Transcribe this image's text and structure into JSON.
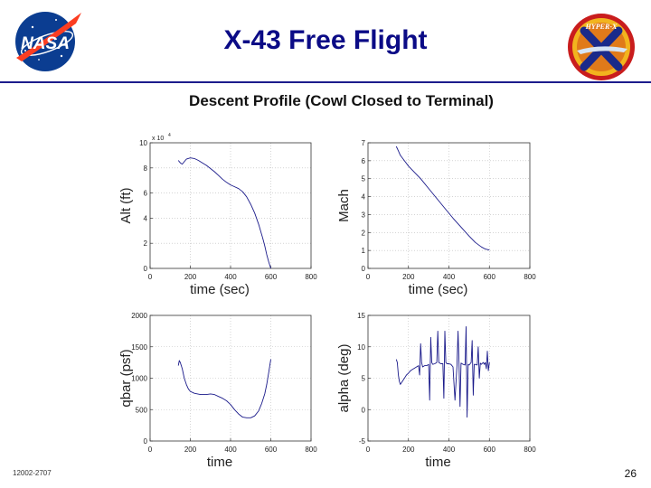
{
  "slide": {
    "title": "X-43 Free Flight",
    "footer_id": "12002-2707",
    "page_number": "26",
    "nasa_logo_text": "NASA",
    "hyperx_logo_text": "HYPER-X"
  },
  "figure_title": "Descent Profile (Cowl Closed to Terminal)",
  "colors": {
    "title": "#0b0b86",
    "line": "#1a1a8a",
    "nasa_blue": "#0b3d91",
    "nasa_red": "#fc3d21"
  },
  "chart_data": [
    {
      "id": "alt",
      "type": "line",
      "xlabel": "time (sec)",
      "ylabel": "Alt (ft)",
      "xlim": [
        0,
        800
      ],
      "ylim": [
        0,
        10
      ],
      "xticks": [
        0,
        200,
        400,
        600,
        800
      ],
      "yticks": [
        0,
        2,
        4,
        6,
        8,
        10
      ],
      "yscale_label": "x 10",
      "yscale_exp": "4",
      "grid": true,
      "series": [
        {
          "x": [
            140,
            150,
            160,
            170,
            180,
            200,
            220,
            240,
            260,
            280,
            300,
            320,
            340,
            360,
            380,
            400,
            420,
            440,
            460,
            480,
            500,
            520,
            540,
            560,
            570,
            580,
            590,
            600
          ],
          "values": [
            8.6,
            8.4,
            8.3,
            8.5,
            8.7,
            8.8,
            8.75,
            8.6,
            8.4,
            8.2,
            7.95,
            7.7,
            7.4,
            7.1,
            6.85,
            6.65,
            6.5,
            6.35,
            6.1,
            5.7,
            5.1,
            4.4,
            3.5,
            2.4,
            1.8,
            1.1,
            0.5,
            0.0
          ]
        }
      ]
    },
    {
      "id": "mach",
      "type": "line",
      "xlabel": "time (sec)",
      "ylabel": "Mach",
      "xlim": [
        0,
        800
      ],
      "ylim": [
        0,
        7
      ],
      "xticks": [
        0,
        200,
        400,
        600,
        800
      ],
      "yticks": [
        0,
        1,
        2,
        3,
        4,
        5,
        6,
        7
      ],
      "grid": true,
      "series": [
        {
          "x": [
            140,
            150,
            160,
            180,
            200,
            230,
            260,
            300,
            340,
            380,
            420,
            460,
            500,
            530,
            560,
            580,
            600
          ],
          "values": [
            6.8,
            6.55,
            6.3,
            6.0,
            5.7,
            5.35,
            5.0,
            4.45,
            3.9,
            3.35,
            2.8,
            2.3,
            1.8,
            1.45,
            1.2,
            1.08,
            1.02
          ]
        }
      ]
    },
    {
      "id": "qbar",
      "type": "line",
      "xlabel": "time",
      "ylabel": "qbar (psf)",
      "xlim": [
        0,
        800
      ],
      "ylim": [
        0,
        2000
      ],
      "xticks": [
        0,
        200,
        400,
        600,
        800
      ],
      "yticks": [
        0,
        500,
        1000,
        1500,
        2000
      ],
      "grid": true,
      "series": [
        {
          "x": [
            140,
            145,
            150,
            160,
            170,
            180,
            190,
            200,
            220,
            250,
            280,
            300,
            320,
            340,
            360,
            380,
            400,
            420,
            440,
            460,
            480,
            500,
            520,
            540,
            555,
            570,
            580,
            590,
            600
          ],
          "values": [
            1200,
            1280,
            1250,
            1150,
            1000,
            900,
            830,
            790,
            760,
            740,
            740,
            750,
            740,
            710,
            680,
            640,
            580,
            500,
            430,
            380,
            370,
            370,
            400,
            480,
            600,
            750,
            900,
            1100,
            1300
          ]
        }
      ]
    },
    {
      "id": "alpha",
      "type": "line",
      "xlabel": "time",
      "ylabel": "alpha (deg)",
      "xlim": [
        0,
        800
      ],
      "ylim": [
        -5,
        15
      ],
      "xticks": [
        0,
        200,
        400,
        600,
        800
      ],
      "yticks": [
        -5,
        0,
        5,
        10,
        15
      ],
      "grid": true,
      "series": [
        {
          "x": [
            140,
            145,
            150,
            155,
            160,
            170,
            180,
            190,
            200,
            210,
            220,
            230,
            240,
            250,
            255,
            260,
            265,
            270,
            280,
            290,
            300,
            305,
            310,
            315,
            320,
            330,
            340,
            345,
            350,
            360,
            370,
            375,
            380,
            385,
            390,
            400,
            410,
            420,
            430,
            440,
            445,
            450,
            455,
            460,
            470,
            480,
            485,
            490,
            495,
            500,
            510,
            515,
            520,
            525,
            530,
            540,
            545,
            550,
            555,
            560,
            570,
            575,
            580,
            585,
            590,
            595,
            600
          ],
          "values": [
            8,
            7.5,
            5.5,
            4.5,
            4,
            4.5,
            5,
            5.5,
            5.8,
            6.2,
            6.4,
            6.6,
            6.8,
            7,
            5.5,
            10.5,
            7.5,
            6.8,
            7,
            7,
            7.2,
            1.5,
            11.5,
            7.5,
            7.2,
            7.3,
            7.5,
            12.5,
            7.5,
            7.3,
            7.3,
            1.8,
            12.5,
            7.5,
            7.3,
            7.3,
            7.2,
            6.8,
            1.5,
            7,
            12.5,
            7.2,
            0.5,
            7.4,
            7.2,
            7.1,
            13.2,
            -1.2,
            7.2,
            7.1,
            7.5,
            11,
            2.3,
            7.2,
            7.2,
            7.1,
            10,
            5,
            7.4,
            7.2,
            7.5,
            7.2,
            7.5,
            6.5,
            9.3,
            6.2,
            7.5
          ]
        }
      ]
    }
  ]
}
